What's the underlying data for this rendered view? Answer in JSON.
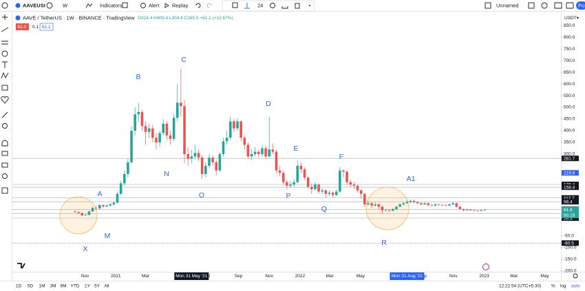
{
  "toolbar": {
    "symbol": "AAVEUSI",
    "interval": "W",
    "indicators": "Indicators",
    "alert": "Alert",
    "replay": "Replay",
    "line_width": "24",
    "layout_name": "Unnamed",
    "publish": "Pu"
  },
  "chart_data": {
    "type": "candlestick",
    "title": "AAVE / TetherUS · 1W · BINANCE · TradingView",
    "ohlc_legend": "O324.4 H409.4 L304.4 C385.5 +61.1 (+12.67%)",
    "badges": [
      "61.0",
      "0.1",
      "61.1"
    ],
    "currency": "USDT▾",
    "up_color": "#26a69a",
    "down_color": "#ef5350",
    "x": [
      "2020-10-12",
      "2020-10-19",
      "2020-10-26",
      "2020-11-02",
      "2020-11-09",
      "2020-11-16",
      "2020-11-23",
      "2020-11-30",
      "2020-12-07",
      "2020-12-14",
      "2020-12-21",
      "2020-12-28",
      "2021-01-04",
      "2021-01-11",
      "2021-01-18",
      "2021-01-25",
      "2021-02-01",
      "2021-02-08",
      "2021-02-15",
      "2021-02-22",
      "2021-03-01",
      "2021-03-08",
      "2021-03-15",
      "2021-03-22",
      "2021-03-29",
      "2021-04-05",
      "2021-04-12",
      "2021-04-19",
      "2021-04-26",
      "2021-05-03",
      "2021-05-10",
      "2021-05-17",
      "2021-05-24",
      "2021-05-31",
      "2021-06-07",
      "2021-06-14",
      "2021-06-21",
      "2021-06-28",
      "2021-07-05",
      "2021-07-12",
      "2021-07-19",
      "2021-07-26",
      "2021-08-02",
      "2021-08-09",
      "2021-08-16",
      "2021-08-23",
      "2021-08-30",
      "2021-09-06",
      "2021-09-13",
      "2021-09-20",
      "2021-09-27",
      "2021-10-04",
      "2021-10-11",
      "2021-10-18",
      "2021-10-25",
      "2021-11-01",
      "2021-11-08",
      "2021-11-15",
      "2021-11-22",
      "2021-11-29",
      "2021-12-06",
      "2021-12-13",
      "2021-12-20",
      "2021-12-27",
      "2022-01-03",
      "2022-01-10",
      "2022-01-17",
      "2022-01-24",
      "2022-01-31",
      "2022-02-07",
      "2022-02-14",
      "2022-02-21",
      "2022-02-28",
      "2022-03-07",
      "2022-03-14",
      "2022-03-21",
      "2022-03-28",
      "2022-04-04",
      "2022-04-11",
      "2022-04-18",
      "2022-04-25",
      "2022-05-02",
      "2022-05-09",
      "2022-05-16",
      "2022-05-23",
      "2022-05-30",
      "2022-06-06",
      "2022-06-13",
      "2022-06-20",
      "2022-06-27",
      "2022-07-04",
      "2022-07-11",
      "2022-07-18",
      "2022-07-25",
      "2022-08-01",
      "2022-08-08",
      "2022-08-15",
      "2022-08-22",
      "2022-08-29",
      "2022-09-05",
      "2022-09-12",
      "2022-09-19",
      "2022-09-26",
      "2022-10-03",
      "2022-10-10",
      "2022-10-17",
      "2022-10-24",
      "2022-10-31",
      "2022-11-07",
      "2022-11-14",
      "2022-11-21",
      "2022-11-28",
      "2022-12-05",
      "2022-12-12",
      "2022-12-19",
      "2022-12-26",
      "2023-01-02"
    ],
    "open": [
      55,
      52,
      48,
      38,
      40,
      55,
      70,
      68,
      82,
      76,
      80,
      85,
      92,
      130,
      175,
      215,
      265,
      400,
      470,
      480,
      420,
      395,
      410,
      370,
      350,
      390,
      430,
      380,
      365,
      455,
      520,
      505,
      300,
      280,
      290,
      305,
      285,
      215,
      250,
      285,
      265,
      230,
      300,
      355,
      370,
      440,
      410,
      440,
      370,
      340,
      290,
      300,
      310,
      300,
      325,
      290,
      320,
      310,
      230,
      220,
      180,
      165,
      170,
      180,
      250,
      235,
      200,
      160,
      150,
      170,
      140,
      145,
      130,
      135,
      125,
      140,
      230,
      225,
      180,
      170,
      165,
      145,
      130,
      85,
      90,
      80,
      85,
      75,
      60,
      60,
      58,
      65,
      75,
      85,
      90,
      95,
      100,
      95,
      90,
      85,
      90,
      82,
      80,
      85,
      83,
      82,
      80,
      85,
      90,
      75,
      65,
      60,
      63,
      60,
      58,
      57,
      60
    ],
    "high": [
      58,
      54,
      50,
      45,
      58,
      75,
      78,
      88,
      85,
      86,
      92,
      98,
      140,
      185,
      230,
      280,
      420,
      500,
      520,
      490,
      440,
      430,
      425,
      390,
      400,
      450,
      440,
      400,
      470,
      600,
      665,
      530,
      330,
      320,
      340,
      320,
      295,
      265,
      300,
      295,
      275,
      310,
      370,
      400,
      460,
      450,
      455,
      445,
      380,
      350,
      320,
      330,
      320,
      340,
      335,
      460,
      345,
      320,
      250,
      230,
      190,
      185,
      195,
      275,
      265,
      245,
      205,
      175,
      180,
      175,
      155,
      150,
      145,
      140,
      150,
      245,
      235,
      230,
      190,
      180,
      170,
      150,
      135,
      100,
      95,
      95,
      90,
      80,
      66,
      65,
      70,
      80,
      90,
      95,
      102,
      106,
      104,
      98,
      94,
      95,
      92,
      86,
      90,
      88,
      86,
      85,
      90,
      95,
      92,
      78,
      68,
      66,
      65,
      63,
      61,
      63,
      65
    ],
    "low": [
      50,
      45,
      35,
      35,
      38,
      53,
      62,
      65,
      70,
      72,
      76,
      80,
      90,
      125,
      165,
      200,
      260,
      380,
      440,
      400,
      340,
      370,
      350,
      320,
      330,
      380,
      360,
      340,
      355,
      440,
      460,
      260,
      250,
      260,
      280,
      270,
      195,
      200,
      240,
      250,
      210,
      225,
      290,
      340,
      360,
      395,
      400,
      355,
      320,
      280,
      275,
      290,
      285,
      290,
      280,
      285,
      300,
      220,
      205,
      170,
      150,
      155,
      160,
      175,
      220,
      190,
      150,
      130,
      145,
      130,
      130,
      115,
      120,
      115,
      120,
      135,
      200,
      170,
      160,
      150,
      135,
      110,
      75,
      80,
      70,
      75,
      65,
      45,
      55,
      52,
      55,
      62,
      72,
      80,
      86,
      90,
      88,
      85,
      80,
      82,
      78,
      76,
      77,
      79,
      78,
      76,
      77,
      82,
      70,
      62,
      56,
      58,
      56,
      55,
      54,
      55,
      58
    ],
    "close": [
      52,
      48,
      38,
      40,
      55,
      70,
      68,
      82,
      76,
      80,
      85,
      92,
      130,
      175,
      215,
      265,
      400,
      470,
      480,
      420,
      395,
      410,
      370,
      350,
      390,
      430,
      380,
      365,
      455,
      520,
      505,
      300,
      280,
      290,
      305,
      285,
      215,
      250,
      285,
      265,
      230,
      300,
      355,
      370,
      440,
      410,
      440,
      370,
      340,
      290,
      300,
      310,
      300,
      325,
      290,
      320,
      310,
      230,
      220,
      180,
      165,
      170,
      180,
      250,
      235,
      200,
      160,
      150,
      170,
      140,
      145,
      130,
      135,
      125,
      140,
      230,
      225,
      180,
      170,
      165,
      145,
      130,
      85,
      90,
      80,
      85,
      75,
      60,
      60,
      58,
      65,
      75,
      85,
      90,
      95,
      100,
      95,
      90,
      85,
      90,
      82,
      80,
      85,
      83,
      82,
      80,
      85,
      90,
      75,
      65,
      60,
      63,
      60,
      58,
      57,
      60,
      62
    ],
    "xlim": [
      "2020-06-10",
      "2023-06-02"
    ],
    "xticks": [
      {
        "value": "2020-11-01",
        "label": "Nov"
      },
      {
        "value": "2021-01-01",
        "label": "2021"
      },
      {
        "value": "2021-03-01",
        "label": "Mar"
      },
      {
        "value": "2021-07-01",
        "label": "Jul"
      },
      {
        "value": "2021-09-01",
        "label": "Sep"
      },
      {
        "value": "2021-11-01",
        "label": "Nov"
      },
      {
        "value": "2022-01-01",
        "label": "2022"
      },
      {
        "value": "2022-03-01",
        "label": "Mar"
      },
      {
        "value": "2022-05-01",
        "label": "May"
      },
      {
        "value": "2022-09-01",
        "label": "Sep"
      },
      {
        "value": "2022-11-01",
        "label": "Nov"
      },
      {
        "value": "2023-01-01",
        "label": "2023"
      },
      {
        "value": "2023-03-01",
        "label": "Mar"
      },
      {
        "value": "2023-05-01",
        "label": "May"
      }
    ],
    "ylim": [
      -203,
      909
    ],
    "yticks": [
      {
        "value": 850,
        "label": "850.0"
      },
      {
        "value": 800,
        "label": "800.0"
      },
      {
        "value": 750,
        "label": "750.0"
      },
      {
        "value": 700,
        "label": "700.0"
      },
      {
        "value": 650,
        "label": "650.0"
      },
      {
        "value": 600,
        "label": "600.0"
      },
      {
        "value": 550,
        "label": "550.0"
      },
      {
        "value": 500,
        "label": "500.0"
      },
      {
        "value": 450,
        "label": "450.0"
      },
      {
        "value": 400,
        "label": "400.0"
      },
      {
        "value": 350,
        "label": "350.0"
      },
      {
        "value": 300,
        "label": "300.0"
      },
      {
        "value": -50,
        "label": "-50.0"
      },
      {
        "value": -100,
        "label": "-100.0"
      },
      {
        "value": -150,
        "label": "-150.0"
      },
      {
        "value": -200,
        "label": "-200.0"
      }
    ],
    "grid": false,
    "levels": [
      281.7,
      170.4,
      158.4,
      112.7,
      96.4,
      63.6,
      46.3,
      26.3,
      -80.5
    ],
    "price_markers": [
      {
        "value": 219.8,
        "color": "#2962ff"
      },
      {
        "value": 61.8,
        "color": "#26a69a"
      }
    ],
    "last_label_sub": "60.19",
    "crosshair_labels": [
      {
        "value": "2021-05-31",
        "label": "Mon 31 May '21"
      },
      {
        "value": "2022-08-01",
        "label": "Mon 01 Aug '22"
      }
    ],
    "annotations": [
      "X",
      "M",
      "A",
      "B",
      "C",
      "N",
      "O",
      "D",
      "E",
      "P",
      "Q",
      "F",
      "R",
      "A1"
    ]
  },
  "bottom_bar": {
    "ranges": [
      "1D",
      "5D",
      "1M",
      "3M",
      "6M",
      "YTD",
      "1Y",
      "5Y",
      "All"
    ],
    "clock": "12:22:54 (UTC+5:30)",
    "percent": "%",
    "log": "log",
    "auto": "auto"
  }
}
